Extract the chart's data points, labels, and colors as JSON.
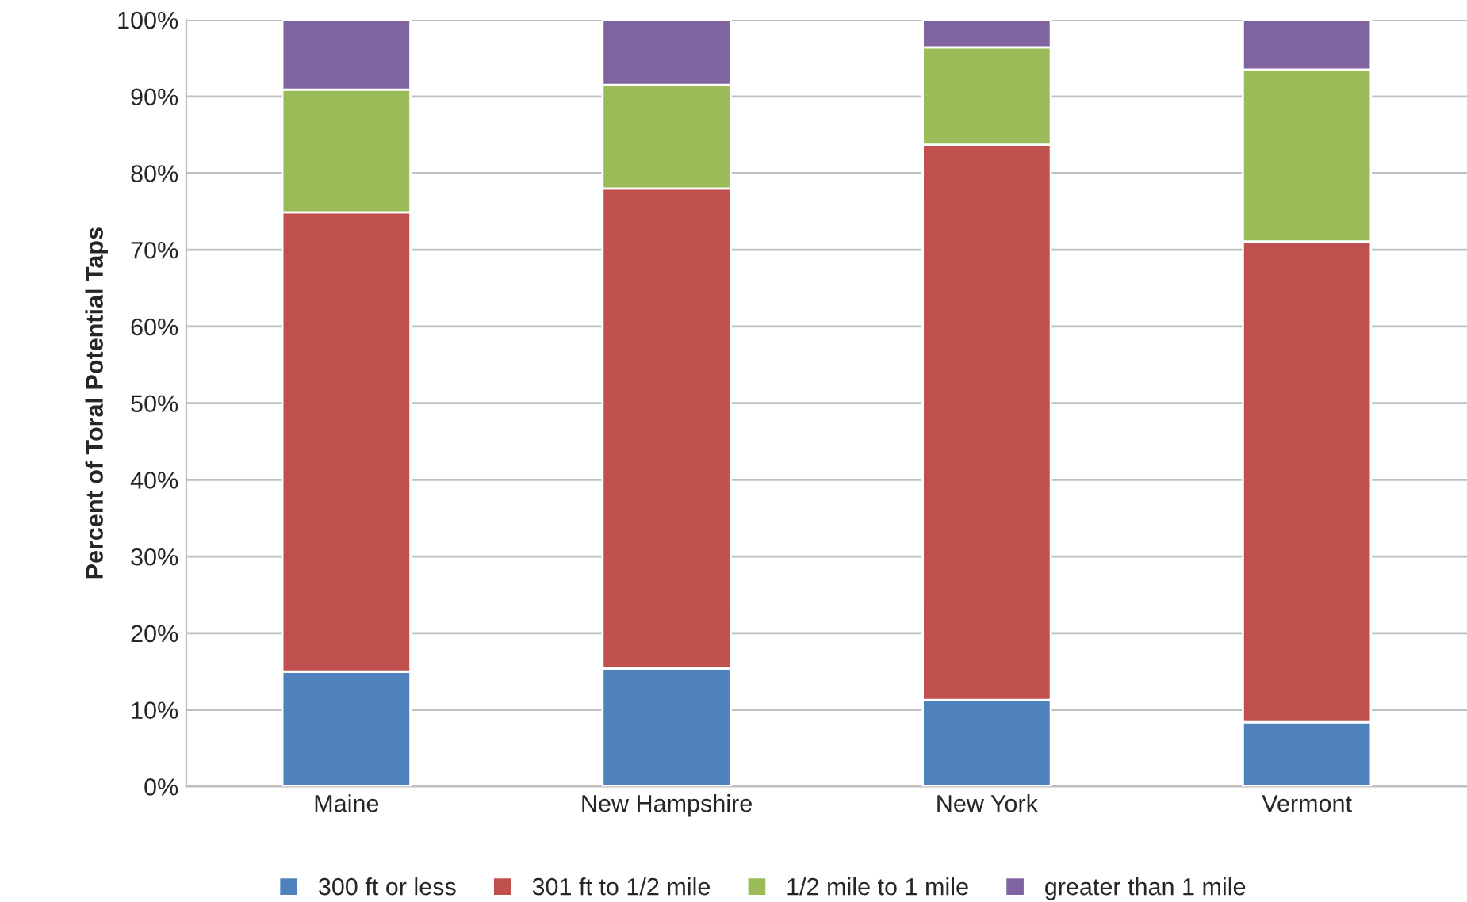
{
  "chart_data": {
    "type": "bar",
    "stacked": true,
    "ylabel": "Percent of Toral Potential Taps",
    "categories": [
      "Maine",
      "New Hampshire",
      "New York",
      "Vermont"
    ],
    "series": [
      {
        "name": "300 ft or less",
        "color": "#4f81bd",
        "values": [
          15.0,
          15.4,
          11.3,
          8.4
        ]
      },
      {
        "name": "301 ft to 1/2 mile",
        "color": "#c0504d",
        "values": [
          59.9,
          62.6,
          72.4,
          62.7
        ]
      },
      {
        "name": "1/2 mile to 1 mile",
        "color": "#9bbb59",
        "values": [
          16.0,
          13.5,
          12.7,
          22.4
        ]
      },
      {
        "name": "greater than 1 mile",
        "color": "#8064a2",
        "values": [
          9.1,
          8.5,
          3.6,
          6.5
        ]
      }
    ],
    "ylim": [
      0,
      100
    ],
    "yticks": [
      {
        "value": 0,
        "label": "0%"
      },
      {
        "value": 10,
        "label": "10%"
      },
      {
        "value": 20,
        "label": "20%"
      },
      {
        "value": 30,
        "label": "30%"
      },
      {
        "value": 40,
        "label": "40%"
      },
      {
        "value": 50,
        "label": "50%"
      },
      {
        "value": 60,
        "label": "60%"
      },
      {
        "value": 70,
        "label": "70%"
      },
      {
        "value": 80,
        "label": "80%"
      },
      {
        "value": 90,
        "label": "90%"
      },
      {
        "value": 100,
        "label": "100%"
      }
    ],
    "grid": "y",
    "legend": "bottom"
  }
}
